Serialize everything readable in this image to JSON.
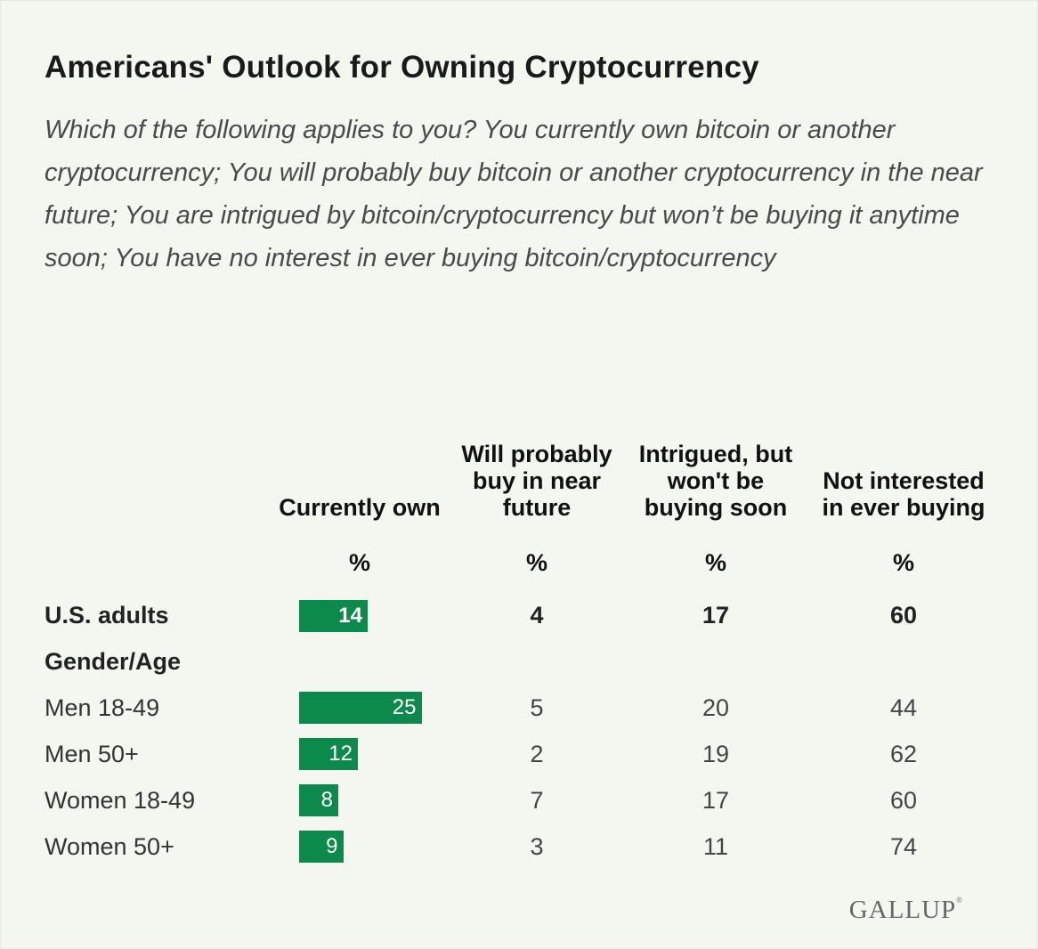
{
  "chart_data": {
    "type": "table",
    "title": "Americans' Outlook for Owning Cryptocurrency",
    "subtitle": "Which of the following applies to you? You currently own bitcoin or another cryptocurrency; You will probably buy bitcoin or another cryptocurrency in the near future; You are intrigued by bitcoin/cryptocurrency but won’t be buying it anytime soon; You have no interest in ever buying bitcoin/cryptocurrency",
    "columns": [
      {
        "label": "Currently own",
        "unit": "%"
      },
      {
        "label": "Will probably buy in near future",
        "unit": "%"
      },
      {
        "label": "Intrigued, but won't be buying soon",
        "unit": "%"
      },
      {
        "label": "Not interested in ever buying",
        "unit": "%"
      }
    ],
    "group_label": "Gender/Age",
    "rows": [
      {
        "label": "U.S. adults",
        "values": [
          14,
          4,
          17,
          60
        ],
        "bold": true
      },
      {
        "label": "Men 18-49",
        "values": [
          25,
          5,
          20,
          44
        ],
        "bold": false
      },
      {
        "label": "Men 50+",
        "values": [
          12,
          2,
          19,
          62
        ],
        "bold": false
      },
      {
        "label": "Women 18-49",
        "values": [
          8,
          7,
          17,
          60
        ],
        "bold": false
      },
      {
        "label": "Women 50+",
        "values": [
          9,
          3,
          11,
          74
        ],
        "bold": false
      }
    ],
    "bar_column": 0,
    "bar_color": "#0b8a4c"
  },
  "logo": "GALLUP"
}
